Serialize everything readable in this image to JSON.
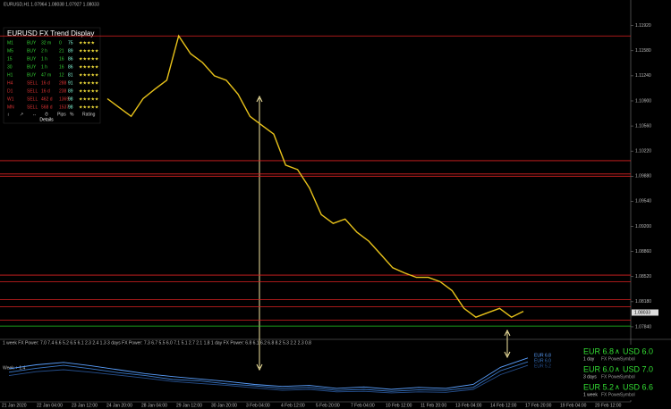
{
  "window_title": "EURUSD,H1  1.07964 1.08038 1.07927 1.08033",
  "panel": {
    "title": "EURUSD FX Trend Display",
    "rows": [
      [
        "M1",
        "BUY",
        "32 m",
        "0",
        "75",
        "★★★★"
      ],
      [
        "M5",
        "BUY",
        "2 h",
        "21",
        "89",
        "★★★★★"
      ],
      [
        "15",
        "BUY",
        "1 h",
        "16",
        "86",
        "★★★★★"
      ],
      [
        "30",
        "BUY",
        "1 h",
        "16",
        "86",
        "★★★★★"
      ],
      [
        "H1",
        "BUY",
        "47 m",
        "12",
        "81",
        "★★★★★"
      ],
      [
        "H4",
        "SELL",
        "16 d",
        "288",
        "91",
        "★★★★★"
      ],
      [
        "D1",
        "SELL",
        "16 d",
        "238",
        "89",
        "★★★★★"
      ],
      [
        "W1",
        "SELL",
        "462 d",
        "1369",
        "98",
        "★★★★★"
      ],
      [
        "MN",
        "SELL",
        "568 d",
        "1537",
        "98",
        "★★★★★"
      ]
    ],
    "footer": [
      "↕",
      "↗",
      "↔",
      "⏱",
      "Pips",
      "%",
      "Rating"
    ],
    "details": "Details"
  },
  "chart_data": [
    {
      "type": "line",
      "color": "#e8c21a",
      "values": [
        1.1093,
        1.1081,
        1.1069,
        1.1093,
        1.1106,
        1.1118,
        1.1178,
        1.1154,
        1.1142,
        1.1124,
        1.1118,
        1.1099,
        1.1069,
        1.1057,
        1.1045,
        1.1003,
        1.0997,
        1.0972,
        1.0936,
        1.0924,
        1.093,
        1.0912,
        1.09,
        1.0882,
        1.0864,
        1.0857,
        1.0851,
        1.0851,
        1.0845,
        1.0833,
        1.0809,
        1.0797,
        1.0803,
        1.0809,
        1.0797,
        1.0805
      ],
      "ylim": [
        1.0767,
        1.1217
      ],
      "yticks": [
        {
          "value": 1.1192,
          "label": "1.11920"
        },
        {
          "value": 1.1158,
          "label": "1.11580"
        },
        {
          "value": 1.1124,
          "label": "1.11240"
        },
        {
          "value": 1.109,
          "label": "1.10900"
        },
        {
          "value": 1.1056,
          "label": "1.10560"
        },
        {
          "value": 1.1022,
          "label": "1.10220"
        },
        {
          "value": 1.0988,
          "label": "1.09880"
        },
        {
          "value": 1.0954,
          "label": "1.09540"
        },
        {
          "value": 1.092,
          "label": "1.09200"
        },
        {
          "value": 1.0886,
          "label": "1.08860"
        },
        {
          "value": 1.0852,
          "label": "1.08520"
        },
        {
          "value": 1.0818,
          "label": "1.08180"
        },
        {
          "value": 1.0784,
          "label": "1.07840"
        }
      ],
      "levels": [
        1.1178,
        1.1009,
        1.0991,
        1.0988,
        1.0854,
        1.0845,
        1.0821,
        1.0811,
        1.0793
      ],
      "level_color": "#d22",
      "support": 1.0785,
      "support_color": "#2c2",
      "current_price": {
        "value": 1.08033,
        "label": "1.08033"
      },
      "date_labels": [
        "21 Jan 2020",
        "22 Jan 04:00",
        "23 Jan 12:00",
        "24 Jan 20:00",
        "28 Jan 04:00",
        "29 Jan 12:00",
        "30 Jan 20:00",
        "3 Feb 04:00",
        "4 Feb 12:00",
        "5 Feb 20:00",
        "7 Feb 04:00",
        "10 Feb 12:00",
        "11 Feb 20:00",
        "13 Feb 04:00",
        "14 Feb 12:00",
        "17 Feb 20:00",
        "19 Feb 04:00",
        "20 Feb 12:00"
      ]
    },
    {
      "type": "line",
      "header": "1 week FX Power: 7.0 7.4 6.6 5.2 6.5 6.1 2.3 2.4 1.3   3 days FX Power: 7.3 6.7 5.5 6.0 7.1 5.1 2.7 2.1 1.8   1 day FX Power: 6.8 6.1 6.2 6.8 8.2 5.3 2.2 2.3 0.8",
      "label": "Week + 1.4",
      "ylim": [
        0,
        10
      ],
      "series": [
        {
          "name": "EUR 6.8",
          "color": "#5aa0ff",
          "values": [
            6.2,
            7.0,
            7.5,
            6.8,
            6.0,
            5.2,
            4.6,
            4.1,
            3.6,
            3.0,
            2.6,
            2.8,
            2.2,
            2.5,
            2.0,
            2.4,
            2.2,
            3.0,
            6.5,
            8.4
          ]
        },
        {
          "name": "EUR 6.0",
          "color": "#3a78c8",
          "values": [
            5.5,
            6.3,
            6.9,
            6.2,
            5.4,
            4.8,
            4.0,
            3.7,
            3.1,
            2.7,
            2.2,
            2.4,
            1.8,
            2.0,
            1.6,
            1.9,
            1.8,
            2.4,
            5.8,
            7.6
          ]
        },
        {
          "name": "EUR 5.2",
          "color": "#26508f",
          "values": [
            4.8,
            5.6,
            6.0,
            5.5,
            4.9,
            4.3,
            3.6,
            3.2,
            2.8,
            2.3,
            1.8,
            2.0,
            1.5,
            1.6,
            1.3,
            1.5,
            1.4,
            2.0,
            5.0,
            6.9
          ]
        }
      ]
    }
  ],
  "fx_power": [
    {
      "base": "EUR 6.8",
      "caret": "∧",
      "quote": "USD 6.0",
      "period": "1 day",
      "sub1": "FX Power",
      "sub2": "Symbol"
    },
    {
      "base": "EUR 6.0",
      "caret": "∧",
      "quote": "USD 7.0",
      "period": "3 days",
      "sub1": "FX Power",
      "sub2": "Symbol"
    },
    {
      "base": "EUR 5.2",
      "caret": "∧",
      "quote": "USD 6.6",
      "period": "1 week",
      "sub1": "FX Power",
      "sub2": "Symbol"
    }
  ]
}
